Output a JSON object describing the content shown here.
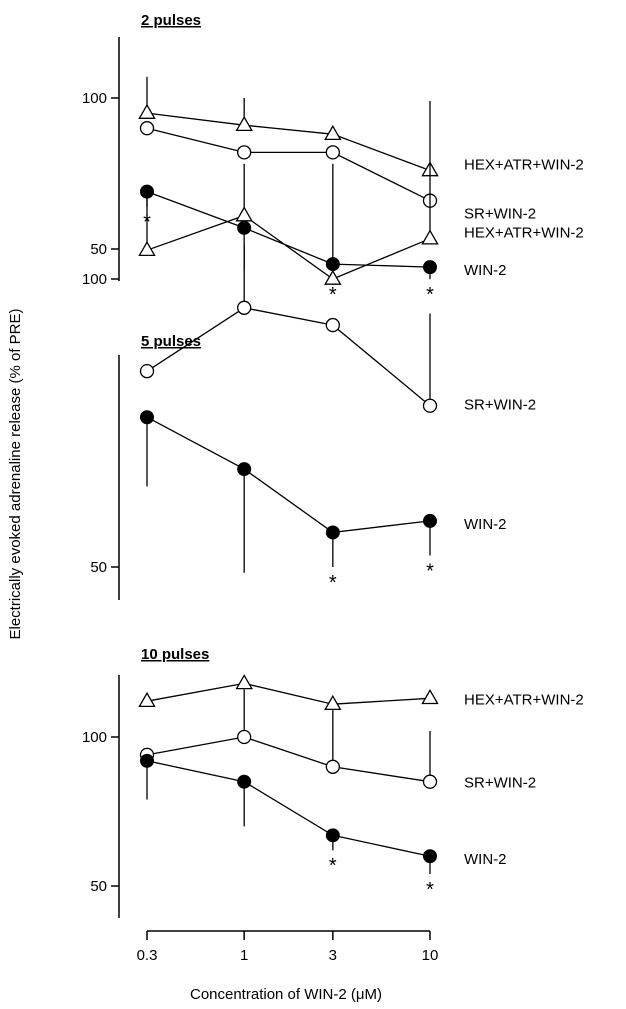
{
  "chart_data": {
    "type": "line",
    "ylabel": "Electrically evoked adrenaline release (% of PRE)",
    "xlabel": "Concentration of WIN-2 (μM)",
    "x_scale": "log",
    "x_ticks": [
      0.3,
      1,
      3,
      10
    ],
    "x_tick_labels": [
      "0.3",
      "1",
      "3",
      "10"
    ],
    "marker_style": {
      "HEX+ATR+WIN-2": "open-triangle",
      "SR+WIN-2": "open-circle",
      "WIN-2": "filled-circle"
    },
    "panels": [
      {
        "title": "2 pulses",
        "y_ticks": [
          50,
          100
        ],
        "ylim": [
          40,
          118
        ],
        "series": [
          {
            "name": "HEX+ATR+WIN-2",
            "x": [
              0.3,
              1,
              3,
              10
            ],
            "y": [
              95,
              91,
              88,
              76
            ],
            "err_up": [
              12,
              9,
              0,
              23
            ],
            "err_down": [
              0,
              0,
              0,
              0
            ]
          },
          {
            "name": "SR+WIN-2",
            "x": [
              0.3,
              1,
              3,
              10
            ],
            "y": [
              90,
              82,
              82,
              66
            ],
            "err_up": [
              0,
              0,
              0,
              0
            ],
            "err_down": [
              0,
              0,
              0,
              0
            ]
          },
          {
            "name": "WIN-2",
            "x": [
              0.3,
              1,
              3,
              10
            ],
            "y": [
              69,
              57,
              45,
              44
            ],
            "err_up": [
              0,
              0,
              0,
              0
            ],
            "err_down": [
              5,
              14,
              5,
              4
            ],
            "significant": [
              true,
              false,
              true,
              true
            ]
          }
        ]
      },
      {
        "title": "5 pulses",
        "y_ticks": [
          50,
          100
        ],
        "ylim": [
          40,
          120
        ],
        "series": [
          {
            "name": "HEX+ATR+WIN-2",
            "x": [
              0.3,
              1,
              3,
              10
            ],
            "y": [
              105,
              111,
              100,
              107
            ],
            "err_up": [
              10,
              9,
              20,
              13
            ],
            "err_down": [
              0,
              0,
              0,
              0
            ]
          },
          {
            "name": "SR+WIN-2",
            "x": [
              0.3,
              1,
              3,
              10
            ],
            "y": [
              84,
              95,
              92,
              78
            ],
            "err_up": [
              0,
              11,
              0,
              16
            ],
            "err_down": [
              0,
              0,
              0,
              0
            ]
          },
          {
            "name": "WIN-2",
            "x": [
              0.3,
              1,
              3,
              10
            ],
            "y": [
              76,
              67,
              56,
              58
            ],
            "err_up": [
              0,
              0,
              0,
              0
            ],
            "err_down": [
              12,
              18,
              6,
              6
            ],
            "significant": [
              false,
              false,
              true,
              true
            ]
          }
        ]
      },
      {
        "title": "10 pulses",
        "y_ticks": [
          50,
          100
        ],
        "ylim": [
          40,
          120
        ],
        "series": [
          {
            "name": "HEX+ATR+WIN-2",
            "x": [
              0.3,
              1,
              3,
              10
            ],
            "y": [
              112,
              118,
              111,
              113
            ],
            "err_up": [
              0,
              0,
              0,
              0
            ],
            "err_down": [
              0,
              0,
              0,
              0
            ]
          },
          {
            "name": "SR+WIN-2",
            "x": [
              0.3,
              1,
              3,
              10
            ],
            "y": [
              94,
              100,
              90,
              85
            ],
            "err_up": [
              0,
              16,
              19,
              17
            ],
            "err_down": [
              0,
              0,
              0,
              0
            ]
          },
          {
            "name": "WIN-2",
            "x": [
              0.3,
              1,
              3,
              10
            ],
            "y": [
              92,
              85,
              67,
              60
            ],
            "err_up": [
              0,
              0,
              0,
              0
            ],
            "err_down": [
              13,
              15,
              5,
              6
            ],
            "significant": [
              false,
              false,
              true,
              true
            ]
          }
        ]
      }
    ]
  }
}
